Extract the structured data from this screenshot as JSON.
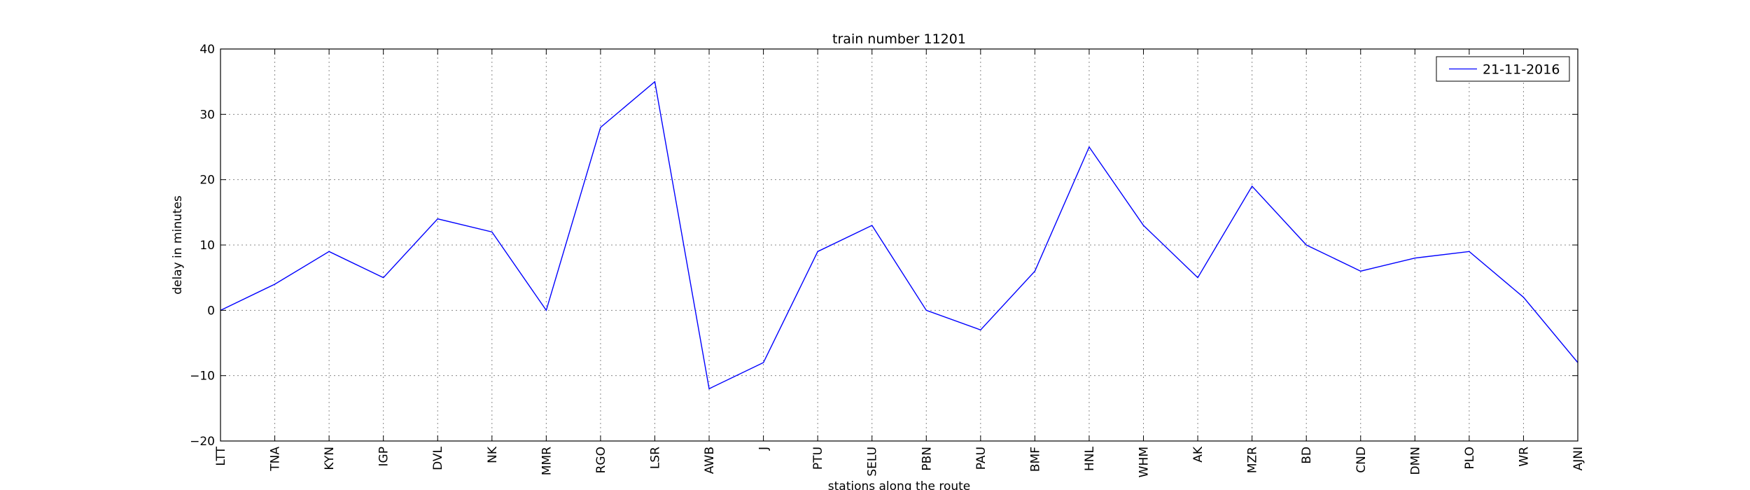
{
  "chart_data": {
    "type": "line",
    "title": "train number 11201",
    "xlabel": "stations along the route",
    "ylabel": "delay in minutes",
    "categories": [
      "LTT",
      "TNA",
      "KYN",
      "IGP",
      "DVL",
      "NK",
      "MMR",
      "RGO",
      "LSR",
      "AWB",
      "J",
      "PTU",
      "SELU",
      "PBN",
      "PAU",
      "BMF",
      "HNL",
      "WHM",
      "AK",
      "MZR",
      "BD",
      "CND",
      "DMN",
      "PLO",
      "WR",
      "AJNI"
    ],
    "series": [
      {
        "name": "21-11-2016",
        "color": "#0000ff",
        "values": [
          0,
          4,
          9,
          5,
          14,
          12,
          0,
          28,
          35,
          -12,
          -8,
          9,
          13,
          0,
          -3,
          6,
          25,
          13,
          5,
          19,
          10,
          6,
          8,
          9,
          2,
          -8
        ]
      }
    ],
    "ylim": [
      -20,
      40
    ],
    "yticks": [
      -20,
      -10,
      0,
      10,
      20,
      30,
      40
    ],
    "grid": true,
    "legend_position": "top-right"
  }
}
